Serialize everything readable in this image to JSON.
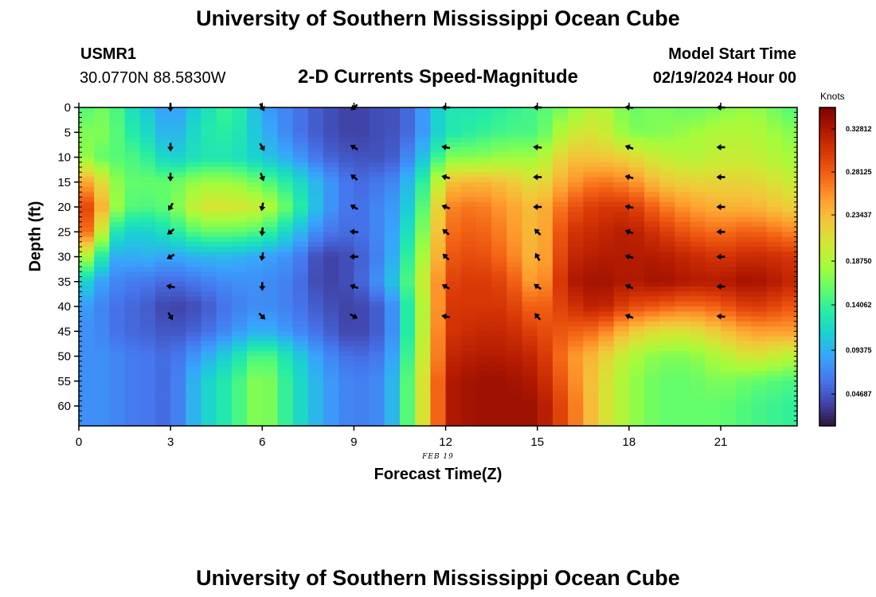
{
  "header": {
    "title": "University of Southern Mississippi Ocean Cube",
    "station_id": "USMR1",
    "station_coords": "30.0770N  88.5830W",
    "subtitle": "2-D Currents Speed-Magnitude",
    "model_start_label": "Model Start Time",
    "model_start_value": "02/19/2024 Hour 00",
    "date_stamp": "FEB 19"
  },
  "footer": {
    "title": "University of Southern Mississippi Ocean Cube"
  },
  "chart_data": {
    "type": "heatmap",
    "title": "2-D Currents Speed-Magnitude",
    "xlabel": "Forecast Time(Z)",
    "ylabel": "Depth (ft)",
    "x_ticks": [
      0,
      3,
      6,
      9,
      12,
      15,
      18,
      21
    ],
    "y_ticks": [
      0,
      5,
      10,
      15,
      20,
      25,
      30,
      35,
      40,
      45,
      50,
      55,
      60
    ],
    "xlim": [
      0,
      23.5
    ],
    "ylim": [
      0,
      64
    ],
    "colorbar": {
      "label": "Knots",
      "ticks": [
        "0.32812",
        "0.28125",
        "0.23437",
        "0.18750",
        "0.14062",
        "0.09375",
        "0.04687"
      ],
      "range": [
        0.02,
        0.345
      ],
      "colors": [
        "#30123b",
        "#4145ab",
        "#4675ed",
        "#39a2fc",
        "#1bcfd4",
        "#24eca6",
        "#61fc6c",
        "#a4fc3b",
        "#d1e834",
        "#f3c63a",
        "#fe9b2d",
        "#f36315",
        "#d93806",
        "#b11901",
        "#7a0403"
      ]
    },
    "depths_ft": [
      0,
      5,
      10,
      15,
      20,
      25,
      30,
      35,
      40,
      45,
      50,
      55,
      60,
      64
    ],
    "hours": [
      0,
      0.5,
      1,
      1.5,
      2,
      3,
      4,
      5,
      6,
      7,
      8,
      9,
      10,
      10.5,
      11,
      11.5,
      12,
      13,
      14,
      15,
      16,
      17,
      18,
      19,
      20,
      21,
      22,
      23.5
    ],
    "speed_knots": [
      [
        0.15,
        0.16,
        0.17,
        0.13,
        0.12,
        0.08,
        0.12,
        0.15,
        0.09,
        0.07,
        0.05,
        0.04,
        0.05,
        0.05,
        0.07,
        0.1,
        0.13,
        0.13,
        0.14,
        0.15,
        0.17,
        0.2,
        0.16,
        0.17,
        0.16,
        0.17,
        0.18,
        0.15
      ],
      [
        0.17,
        0.17,
        0.17,
        0.14,
        0.13,
        0.09,
        0.13,
        0.14,
        0.1,
        0.07,
        0.05,
        0.04,
        0.05,
        0.05,
        0.07,
        0.1,
        0.13,
        0.14,
        0.15,
        0.15,
        0.2,
        0.21,
        0.17,
        0.17,
        0.18,
        0.19,
        0.19,
        0.17
      ],
      [
        0.19,
        0.16,
        0.16,
        0.15,
        0.15,
        0.11,
        0.13,
        0.13,
        0.11,
        0.09,
        0.06,
        0.05,
        0.05,
        0.06,
        0.09,
        0.12,
        0.17,
        0.17,
        0.18,
        0.18,
        0.23,
        0.23,
        0.22,
        0.2,
        0.19,
        0.2,
        0.2,
        0.18
      ],
      [
        0.25,
        0.24,
        0.19,
        0.16,
        0.16,
        0.16,
        0.18,
        0.18,
        0.16,
        0.13,
        0.09,
        0.06,
        0.07,
        0.08,
        0.12,
        0.16,
        0.23,
        0.24,
        0.23,
        0.21,
        0.25,
        0.27,
        0.26,
        0.23,
        0.22,
        0.22,
        0.22,
        0.2
      ],
      [
        0.3,
        0.28,
        0.2,
        0.16,
        0.15,
        0.16,
        0.21,
        0.21,
        0.2,
        0.15,
        0.09,
        0.06,
        0.08,
        0.09,
        0.13,
        0.18,
        0.26,
        0.27,
        0.25,
        0.23,
        0.28,
        0.3,
        0.3,
        0.27,
        0.25,
        0.24,
        0.24,
        0.22
      ],
      [
        0.28,
        0.26,
        0.14,
        0.12,
        0.11,
        0.13,
        0.16,
        0.16,
        0.15,
        0.11,
        0.07,
        0.06,
        0.08,
        0.1,
        0.15,
        0.19,
        0.27,
        0.28,
        0.26,
        0.23,
        0.3,
        0.31,
        0.32,
        0.3,
        0.28,
        0.27,
        0.28,
        0.26
      ],
      [
        0.2,
        0.17,
        0.1,
        0.09,
        0.1,
        0.09,
        0.1,
        0.1,
        0.09,
        0.08,
        0.04,
        0.05,
        0.08,
        0.11,
        0.17,
        0.2,
        0.28,
        0.29,
        0.27,
        0.23,
        0.31,
        0.32,
        0.32,
        0.32,
        0.31,
        0.3,
        0.31,
        0.3
      ],
      [
        0.13,
        0.1,
        0.08,
        0.07,
        0.07,
        0.06,
        0.07,
        0.08,
        0.08,
        0.07,
        0.04,
        0.05,
        0.09,
        0.12,
        0.18,
        0.22,
        0.29,
        0.3,
        0.29,
        0.24,
        0.32,
        0.33,
        0.32,
        0.33,
        0.32,
        0.32,
        0.33,
        0.31
      ],
      [
        0.09,
        0.08,
        0.07,
        0.06,
        0.06,
        0.04,
        0.05,
        0.07,
        0.08,
        0.07,
        0.05,
        0.04,
        0.06,
        0.1,
        0.17,
        0.21,
        0.3,
        0.3,
        0.3,
        0.27,
        0.3,
        0.32,
        0.29,
        0.28,
        0.27,
        0.28,
        0.3,
        0.28
      ],
      [
        0.08,
        0.08,
        0.07,
        0.06,
        0.06,
        0.05,
        0.06,
        0.08,
        0.1,
        0.08,
        0.06,
        0.04,
        0.06,
        0.1,
        0.17,
        0.22,
        0.3,
        0.31,
        0.31,
        0.29,
        0.28,
        0.27,
        0.23,
        0.21,
        0.21,
        0.23,
        0.25,
        0.25
      ],
      [
        0.08,
        0.08,
        0.08,
        0.07,
        0.07,
        0.06,
        0.09,
        0.12,
        0.16,
        0.12,
        0.08,
        0.06,
        0.07,
        0.11,
        0.18,
        0.22,
        0.31,
        0.32,
        0.32,
        0.31,
        0.26,
        0.23,
        0.19,
        0.17,
        0.17,
        0.19,
        0.21,
        0.19
      ],
      [
        0.08,
        0.08,
        0.08,
        0.07,
        0.07,
        0.06,
        0.11,
        0.14,
        0.18,
        0.13,
        0.09,
        0.07,
        0.08,
        0.12,
        0.19,
        0.23,
        0.32,
        0.33,
        0.33,
        0.32,
        0.27,
        0.22,
        0.18,
        0.16,
        0.16,
        0.17,
        0.16,
        0.15
      ],
      [
        0.08,
        0.08,
        0.08,
        0.07,
        0.07,
        0.06,
        0.11,
        0.14,
        0.18,
        0.13,
        0.09,
        0.07,
        0.08,
        0.12,
        0.19,
        0.23,
        0.32,
        0.33,
        0.33,
        0.33,
        0.28,
        0.22,
        0.18,
        0.16,
        0.16,
        0.16,
        0.15,
        0.14
      ],
      [
        0.08,
        0.08,
        0.08,
        0.07,
        0.07,
        0.06,
        0.11,
        0.14,
        0.18,
        0.13,
        0.09,
        0.07,
        0.08,
        0.12,
        0.19,
        0.23,
        0.32,
        0.33,
        0.33,
        0.33,
        0.28,
        0.22,
        0.18,
        0.16,
        0.16,
        0.16,
        0.15,
        0.14
      ]
    ],
    "vector_hours": [
      3,
      6,
      9,
      12,
      15,
      18,
      21
    ],
    "vector_depths_ft": [
      0,
      8,
      14,
      20,
      25,
      30,
      36,
      42
    ],
    "vector_dir_deg": [
      [
        -90,
        -60,
        -140,
        180,
        180,
        175,
        180
      ],
      [
        -90,
        -60,
        150,
        170,
        175,
        160,
        180
      ],
      [
        -90,
        -70,
        140,
        165,
        180,
        165,
        180
      ],
      [
        -120,
        -100,
        150,
        160,
        180,
        170,
        180
      ],
      [
        -140,
        -95,
        175,
        140,
        135,
        160,
        180
      ],
      [
        -150,
        -100,
        180,
        135,
        120,
        165,
        180
      ],
      [
        170,
        -90,
        160,
        150,
        145,
        155,
        180
      ],
      [
        -60,
        -45,
        -30,
        170,
        130,
        160,
        175
      ]
    ]
  }
}
